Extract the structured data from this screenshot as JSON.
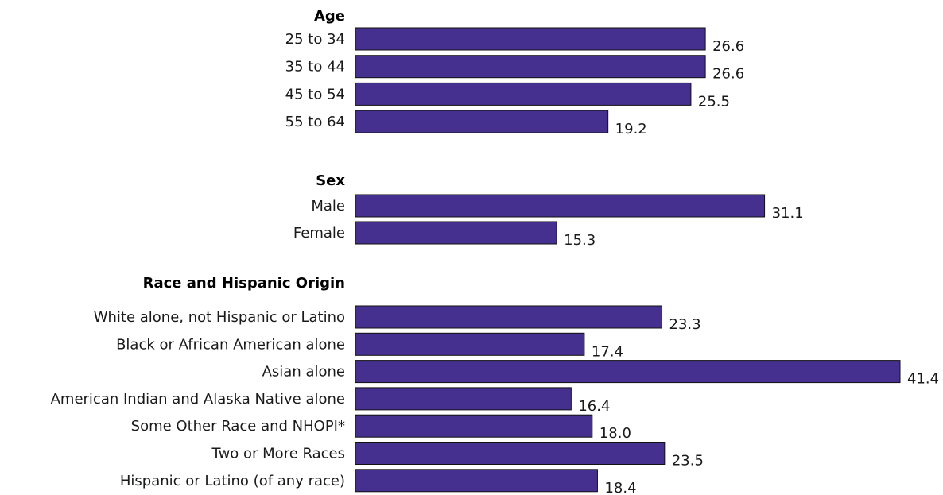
{
  "chart_data": {
    "type": "bar",
    "orientation": "horizontal",
    "bar_color": "#45308f",
    "xlim": [
      0,
      41.4
    ],
    "grid": false,
    "groups": [
      {
        "title": "Age",
        "categories": [
          "25 to 34",
          "35 to 44",
          "45 to 54",
          "55 to 64"
        ],
        "values": [
          26.6,
          26.6,
          25.5,
          19.2
        ],
        "labels": [
          "26.6",
          "26.6",
          "25.5",
          "19.2"
        ]
      },
      {
        "title": "Sex",
        "categories": [
          "Male",
          "Female"
        ],
        "values": [
          31.1,
          15.3
        ],
        "labels": [
          "31.1",
          "15.3"
        ]
      },
      {
        "title": "Race and Hispanic Origin",
        "categories": [
          "White alone, not Hispanic or Latino",
          "Black or African American alone",
          "Asian alone",
          "American Indian and Alaska Native alone",
          "Some Other Race and NHOPI*",
          "Two or More Races",
          "Hispanic or Latino (of any race)"
        ],
        "values": [
          23.3,
          17.4,
          41.4,
          16.4,
          18.0,
          23.5,
          18.4
        ],
        "labels": [
          "23.3",
          "17.4",
          "41.4",
          "16.4",
          "18.0",
          "23.5",
          "18.4"
        ]
      }
    ]
  }
}
